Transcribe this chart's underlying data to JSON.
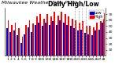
{
  "title": "Milwaukee Weather Dew Point",
  "subtitle": "Daily High/Low",
  "background_color": "#ffffff",
  "ylim": [
    0,
    80
  ],
  "yticks": [
    10,
    20,
    30,
    40,
    50,
    60,
    70
  ],
  "high_color": "#ff0000",
  "low_color": "#0000cc",
  "dashed_cols": [
    19,
    20,
    21,
    22
  ],
  "highs": [
    60,
    52,
    56,
    46,
    32,
    52,
    60,
    54,
    66,
    70,
    62,
    70,
    66,
    74,
    68,
    74,
    70,
    66,
    62,
    60,
    56,
    58,
    50,
    50,
    48,
    56,
    58,
    72
  ],
  "lows": [
    46,
    40,
    42,
    34,
    22,
    36,
    48,
    40,
    52,
    56,
    50,
    56,
    52,
    58,
    52,
    60,
    56,
    52,
    50,
    46,
    42,
    44,
    38,
    36,
    34,
    42,
    44,
    56
  ],
  "n_bars": 28,
  "bar_width": 0.42,
  "tick_labelsize": 3.2,
  "legend_fontsize": 3.5,
  "title_fontsize": 4.5,
  "subtitle_fontsize": 5.5
}
